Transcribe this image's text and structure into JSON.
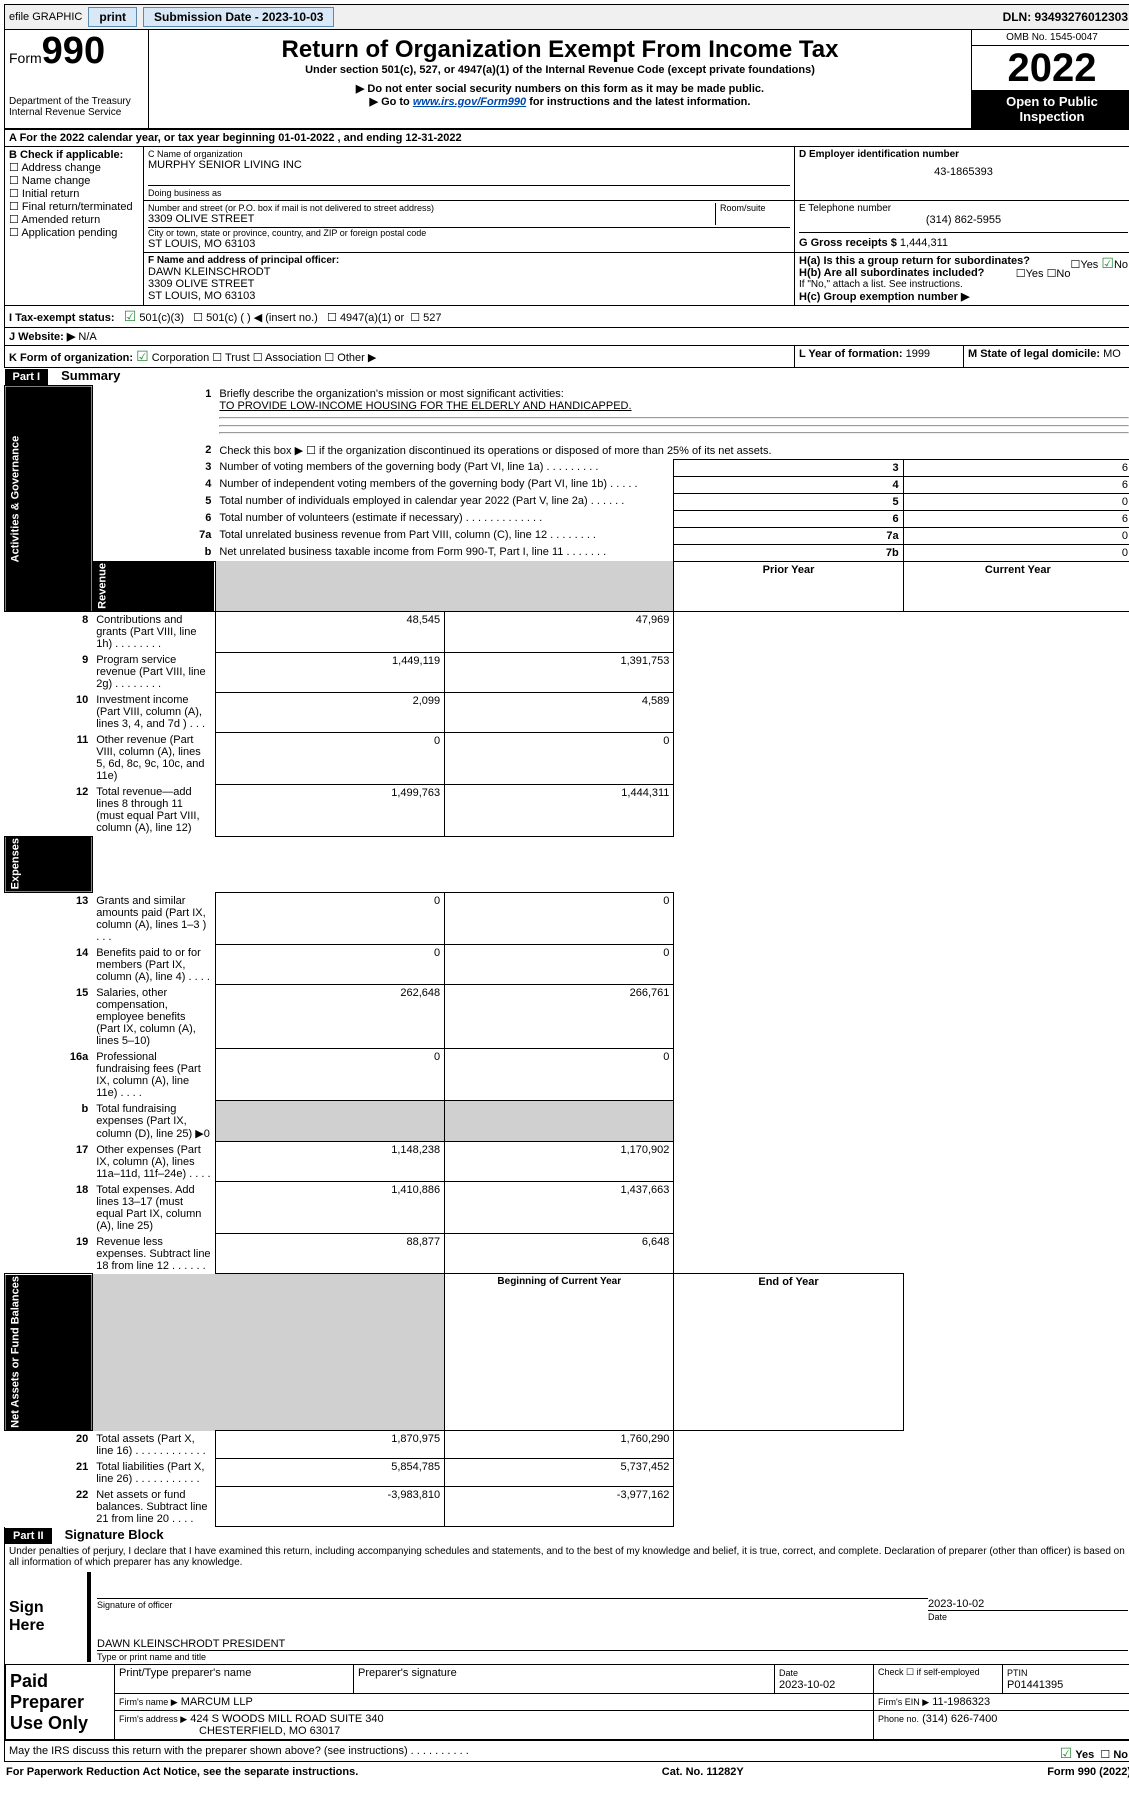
{
  "topbar": {
    "efile": "efile GRAPHIC",
    "print": "print",
    "submission": "Submission Date - 2023-10-03",
    "dln": "DLN: 93493276012303"
  },
  "header": {
    "form_label": "Form",
    "form_no": "990",
    "dept": "Department of the Treasury",
    "irs": "Internal Revenue Service",
    "title": "Return of Organization Exempt From Income Tax",
    "sub1": "Under section 501(c), 527, or 4947(a)(1) of the Internal Revenue Code (except private foundations)",
    "sub2": "▶ Do not enter social security numbers on this form as it may be made public.",
    "sub3_pre": "▶ Go to",
    "sub3_link": "www.irs.gov/Form990",
    "sub3_post": "for instructions and the latest information.",
    "omb": "OMB No. 1545-0047",
    "year": "2022",
    "open": "Open to Public Inspection"
  },
  "secA": {
    "a_line": "A For the 2022 calendar year, or tax year beginning 01-01-2022    , and ending 12-31-2022",
    "b_label": "B Check if applicable:",
    "b_opts": [
      "Address change",
      "Name change",
      "Initial return",
      "Final return/terminated",
      "Amended return",
      "Application pending"
    ],
    "c_label": "C Name of organization",
    "c_name": "MURPHY SENIOR LIVING INC",
    "dba": "Doing business as",
    "addr_label": "Number and street (or P.O. box if mail is not delivered to street address)",
    "room": "Room/suite",
    "addr": "3309 OLIVE STREET",
    "city_label": "City or town, state or province, country, and ZIP or foreign postal code",
    "city": "ST LOUIS, MO  63103",
    "d_label": "D Employer identification number",
    "d_val": "43-1865393",
    "e_label": "E Telephone number",
    "e_val": "(314) 862-5955",
    "g_label": "G Gross receipts $",
    "g_val": "1,444,311",
    "f_label": "F Name and address of principal officer:",
    "f_name": "DAWN KLEINSCHRODT",
    "f_addr1": "3309 OLIVE STREET",
    "f_addr2": "ST LOUIS, MO  63103",
    "ha": "H(a)  Is this a group return for subordinates?",
    "hb": "H(b)  Are all subordinates included?",
    "h_note": "If \"No,\" attach a list. See instructions.",
    "hc": "H(c)  Group exemption number ▶",
    "i_label": "I  Tax-exempt status:",
    "i_501c3": "501(c)(3)",
    "i_501c": "501(c) (  ) ◀ (insert no.)",
    "i_4947": "4947(a)(1) or",
    "i_527": "527",
    "j_label": "J  Website: ▶",
    "j_val": "N/A",
    "k_label": "K Form of organization:",
    "k_corp": "Corporation",
    "k_trust": "Trust",
    "k_assoc": "Association",
    "k_other": "Other ▶",
    "l_label": "L Year of formation:",
    "l_val": "1999",
    "m_label": "M State of legal domicile:",
    "m_val": "MO"
  },
  "part1": {
    "hdr": "Part I",
    "title": "Summary",
    "q1": "Briefly describe the organization's mission or most significant activities:",
    "mission": "TO PROVIDE LOW-INCOME HOUSING FOR THE ELDERLY AND HANDICAPPED.",
    "q2": "Check this box ▶ ☐  if the organization discontinued its operations or disposed of more than 25% of its net assets.",
    "rows_gov": [
      {
        "n": "3",
        "t": "Number of voting members of the governing body (Part VI, line 1a)  .   .   .   .   .   .   .   .   .",
        "b": "3",
        "v": "6"
      },
      {
        "n": "4",
        "t": "Number of independent voting members of the governing body (Part VI, line 1b)  .   .   .   .   .",
        "b": "4",
        "v": "6"
      },
      {
        "n": "5",
        "t": "Total number of individuals employed in calendar year 2022 (Part V, line 2a)  .   .   .   .   .   .",
        "b": "5",
        "v": "0"
      },
      {
        "n": "6",
        "t": "Total number of volunteers (estimate if necessary)  .   .   .   .   .   .   .   .   .   .   .   .   .",
        "b": "6",
        "v": "6"
      },
      {
        "n": "7a",
        "t": "Total unrelated business revenue from Part VIII, column (C), line 12  .   .   .   .   .   .   .   .",
        "b": "7a",
        "v": "0"
      },
      {
        "n": "b",
        "t": "Net unrelated business taxable income from Form 990-T, Part I, line 11  .   .   .   .   .   .   .",
        "b": "7b",
        "v": "0"
      }
    ],
    "col_prior": "Prior Year",
    "col_curr": "Current Year",
    "rows_rev": [
      {
        "n": "8",
        "t": "Contributions and grants (Part VIII, line 1h)  .   .   .   .   .   .   .   .",
        "p": "48,545",
        "c": "47,969"
      },
      {
        "n": "9",
        "t": "Program service revenue (Part VIII, line 2g)  .   .   .   .   .   .   .   .",
        "p": "1,449,119",
        "c": "1,391,753"
      },
      {
        "n": "10",
        "t": "Investment income (Part VIII, column (A), lines 3, 4, and 7d )  .   .   .",
        "p": "2,099",
        "c": "4,589"
      },
      {
        "n": "11",
        "t": "Other revenue (Part VIII, column (A), lines 5, 6d, 8c, 9c, 10c, and 11e)",
        "p": "0",
        "c": "0"
      },
      {
        "n": "12",
        "t": "Total revenue—add lines 8 through 11 (must equal Part VIII, column (A), line 12)",
        "p": "1,499,763",
        "c": "1,444,311"
      }
    ],
    "rows_exp": [
      {
        "n": "13",
        "t": "Grants and similar amounts paid (Part IX, column (A), lines 1–3 )  .   .   .",
        "p": "0",
        "c": "0"
      },
      {
        "n": "14",
        "t": "Benefits paid to or for members (Part IX, column (A), line 4)  .   .   .   .",
        "p": "0",
        "c": "0"
      },
      {
        "n": "15",
        "t": "Salaries, other compensation, employee benefits (Part IX, column (A), lines 5–10)",
        "p": "262,648",
        "c": "266,761"
      },
      {
        "n": "16a",
        "t": "Professional fundraising fees (Part IX, column (A), line 11e)  .   .   .   .",
        "p": "0",
        "c": "0"
      },
      {
        "n": "b",
        "t": "Total fundraising expenses (Part IX, column (D), line 25) ▶0",
        "p": "",
        "c": "",
        "shade": true
      },
      {
        "n": "17",
        "t": "Other expenses (Part IX, column (A), lines 11a–11d, 11f–24e)  .   .   .   .",
        "p": "1,148,238",
        "c": "1,170,902"
      },
      {
        "n": "18",
        "t": "Total expenses. Add lines 13–17 (must equal Part IX, column (A), line 25)",
        "p": "1,410,886",
        "c": "1,437,663"
      },
      {
        "n": "19",
        "t": "Revenue less expenses. Subtract line 18 from line 12  .   .   .   .   .   .",
        "p": "88,877",
        "c": "6,648"
      }
    ],
    "col_beg": "Beginning of Current Year",
    "col_end": "End of Year",
    "rows_net": [
      {
        "n": "20",
        "t": "Total assets (Part X, line 16)  .   .   .   .   .   .   .   .   .   .   .   .",
        "p": "1,870,975",
        "c": "1,760,290"
      },
      {
        "n": "21",
        "t": "Total liabilities (Part X, line 26)  .   .   .   .   .   .   .   .   .   .   .",
        "p": "5,854,785",
        "c": "5,737,452"
      },
      {
        "n": "22",
        "t": "Net assets or fund balances. Subtract line 21 from line 20  .   .   .   .",
        "p": "-3,983,810",
        "c": "-3,977,162"
      }
    ],
    "side_gov": "Activities & Governance",
    "side_rev": "Revenue",
    "side_exp": "Expenses",
    "side_net": "Net Assets or Fund Balances"
  },
  "part2": {
    "hdr": "Part II",
    "title": "Signature Block",
    "decl": "Under penalties of perjury, I declare that I have examined this return, including accompanying schedules and statements, and to the best of my knowledge and belief, it is true, correct, and complete. Declaration of preparer (other than officer) is based on all information of which preparer has any knowledge.",
    "sign_here": "Sign Here",
    "sig_officer": "Signature of officer",
    "sig_date": "2023-10-02",
    "date_lbl": "Date",
    "officer_name": "DAWN KLEINSCHRODT  PRESIDENT",
    "type_name": "Type or print name and title",
    "paid": "Paid Preparer Use Only",
    "prep_name_lbl": "Print/Type preparer's name",
    "prep_sig_lbl": "Preparer's signature",
    "prep_date_lbl": "Date",
    "prep_date": "2023-10-02",
    "check_self": "Check ☐ if self-employed",
    "ptin_lbl": "PTIN",
    "ptin": "P01441395",
    "firm_name_lbl": "Firm's name   ▶",
    "firm_name": "MARCUM LLP",
    "firm_ein_lbl": "Firm's EIN ▶",
    "firm_ein": "11-1986323",
    "firm_addr_lbl": "Firm's address ▶",
    "firm_addr1": "424 S WOODS MILL ROAD SUITE 340",
    "firm_addr2": "CHESTERFIELD, MO  63017",
    "phone_lbl": "Phone no.",
    "phone": "(314) 626-7400",
    "may_irs": "May the IRS discuss this return with the preparer shown above? (see instructions)  .   .   .   .   .   .   .   .   .   .",
    "yes": "Yes",
    "no": "No"
  },
  "footer": {
    "left": "For Paperwork Reduction Act Notice, see the separate instructions.",
    "mid": "Cat. No. 11282Y",
    "right": "Form 990 (2022)"
  }
}
